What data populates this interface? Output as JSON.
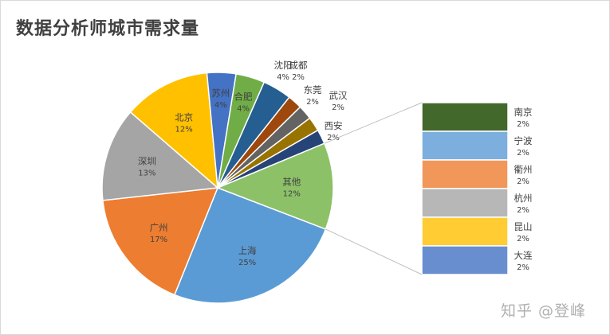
{
  "chart_data": {
    "type": "pie",
    "title": "数据分析师城市需求量",
    "slices": [
      {
        "label": "上海",
        "value": 25,
        "pct_label": "25%",
        "color": "#5b9bd5"
      },
      {
        "label": "广州",
        "value": 17,
        "pct_label": "17%",
        "color": "#ed7d31"
      },
      {
        "label": "深圳",
        "value": 13,
        "pct_label": "13%",
        "color": "#a5a5a5"
      },
      {
        "label": "北京",
        "value": 12,
        "pct_label": "12%",
        "color": "#ffc000"
      },
      {
        "label": "苏州",
        "value": 4,
        "pct_label": "4%",
        "color": "#4472c4"
      },
      {
        "label": "合肥",
        "value": 4,
        "pct_label": "4%",
        "color": "#70ad47"
      },
      {
        "label": "沈阳",
        "value": 4,
        "pct_label": "4%",
        "color": "#255e91"
      },
      {
        "label": "成都",
        "value": 2,
        "pct_label": "2%",
        "color": "#9e480e"
      },
      {
        "label": "东莞",
        "value": 2,
        "pct_label": "2%",
        "color": "#636363"
      },
      {
        "label": "武汉",
        "value": 2,
        "pct_label": "2%",
        "color": "#997300"
      },
      {
        "label": "西安",
        "value": 2,
        "pct_label": "2%",
        "color": "#264478"
      },
      {
        "label": "其他",
        "value": 12,
        "pct_label": "12%",
        "color": "#8cc168"
      }
    ],
    "breakdown_of": "其他",
    "breakdown": [
      {
        "label": "南京",
        "value": 2,
        "pct_label": "2%",
        "color": "#43682b"
      },
      {
        "label": "宁波",
        "value": 2,
        "pct_label": "2%",
        "color": "#7cafdd"
      },
      {
        "label": "衢州",
        "value": 2,
        "pct_label": "2%",
        "color": "#f1975a"
      },
      {
        "label": "杭州",
        "value": 2,
        "pct_label": "2%",
        "color": "#b7b7b7"
      },
      {
        "label": "昆山",
        "value": 2,
        "pct_label": "2%",
        "color": "#ffcd33"
      },
      {
        "label": "大连",
        "value": 2,
        "pct_label": "2%",
        "color": "#698ed0"
      }
    ]
  },
  "watermark": "知乎 @登峰"
}
